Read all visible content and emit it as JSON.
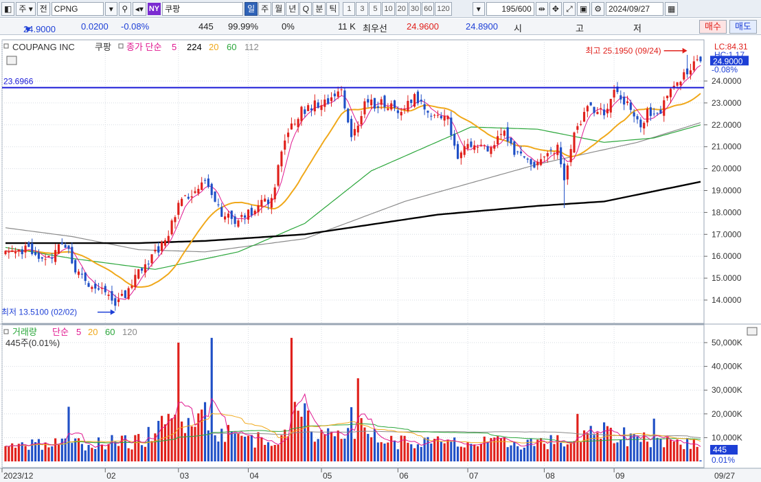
{
  "toolbar": {
    "market_label": "주",
    "prev_label": "전",
    "symbol": "CPNG",
    "ny_badge": "NY",
    "symbol_name": "쿠팡",
    "periods": [
      "일",
      "주",
      "월",
      "년",
      "Q",
      "분",
      "틱"
    ],
    "active_period": "일",
    "intervals": [
      "1",
      "3",
      "5",
      "10",
      "20",
      "30",
      "60",
      "120"
    ],
    "count": "195",
    "count_max": "/600",
    "date": "2024/09/27"
  },
  "quote": {
    "price": "24.9000",
    "direction": "▼",
    "change": "0.0200",
    "change_pct": "-0.08%",
    "volume": "445",
    "vol_pct": "99.99%",
    "pct0": "0%",
    "amount": "11 K",
    "best_label": "최우선",
    "ask": "24.9600",
    "bid": "24.8900",
    "open_label": "시",
    "high_label": "고",
    "low_label": "저",
    "buy_label": "매수",
    "sell_label": "매도"
  },
  "colors": {
    "up": "#e0201b",
    "down": "#1f4fc6",
    "ma5": "#e0168f",
    "ma20": "#f0a81a",
    "ma60": "#2aa63a",
    "ma112": "#8a8a8a",
    "ma224": "#000000",
    "hline": "#1717d6"
  },
  "price_panel": {
    "legend_name": "COUPANG INC",
    "legend_symbol": "쿠팡",
    "legend_type": "종가 단순",
    "ma_periods": [
      "5",
      "224",
      "20",
      "60",
      "112"
    ],
    "top_right_label": "LC:84.31",
    "top_right_label2": "HC:1.17",
    "last_price_tag": "24.9000",
    "last_pct_tag": "-0.08%",
    "hline_label": "23.6966",
    "max_label": "최고 25.1950 (09/24)",
    "min_label": "최저 13.5100 (02/02)"
  },
  "volume_panel": {
    "legend_name": "거래량",
    "legend_type": "단순",
    "ma_periods": [
      "5",
      "20",
      "60",
      "120"
    ],
    "sub_label": "445주(0.01%)",
    "last_tag": "445",
    "last_pct_tag": "0.01%"
  },
  "chart_data": {
    "type": "candlestick",
    "x_tick_labels": [
      "2023/12",
      "02",
      "03",
      "04",
      "05",
      "06",
      "07",
      "08",
      "09"
    ],
    "last_date_label": "09/27",
    "price_axis": {
      "ticks": [
        "14.0000",
        "15.0000",
        "16.0000",
        "17.0000",
        "18.0000",
        "19.0000",
        "20.0000",
        "21.0000",
        "22.0000",
        "23.0000",
        "24.0000"
      ],
      "range": [
        13.0,
        25.7
      ]
    },
    "volume_axis": {
      "ticks": [
        "10,000K",
        "20,000K",
        "30,000K",
        "40,000K",
        "50,000K"
      ],
      "range": [
        0,
        56000
      ]
    },
    "horizontal_line": 23.6966,
    "anchors": [
      {
        "i": 0,
        "p": 16.3
      },
      {
        "i": 8,
        "p": 16.3
      },
      {
        "i": 12,
        "p": 15.8
      },
      {
        "i": 18,
        "p": 16.6
      },
      {
        "i": 22,
        "p": 15.1
      },
      {
        "i": 28,
        "p": 14.5
      },
      {
        "i": 33,
        "p": 13.8
      },
      {
        "i": 36,
        "p": 14.2
      },
      {
        "i": 42,
        "p": 15.7
      },
      {
        "i": 48,
        "p": 16.6
      },
      {
        "i": 53,
        "p": 18.8
      },
      {
        "i": 57,
        "p": 18.9
      },
      {
        "i": 60,
        "p": 19.3
      },
      {
        "i": 65,
        "p": 17.9
      },
      {
        "i": 70,
        "p": 17.6
      },
      {
        "i": 75,
        "p": 18.2
      },
      {
        "i": 80,
        "p": 18.6
      },
      {
        "i": 84,
        "p": 21.5
      },
      {
        "i": 89,
        "p": 22.6
      },
      {
        "i": 93,
        "p": 22.9
      },
      {
        "i": 98,
        "p": 23.1
      },
      {
        "i": 101,
        "p": 23.4
      },
      {
        "i": 104,
        "p": 21.4
      },
      {
        "i": 108,
        "p": 22.9
      },
      {
        "i": 113,
        "p": 23.0
      },
      {
        "i": 118,
        "p": 22.6
      },
      {
        "i": 123,
        "p": 23.2
      },
      {
        "i": 128,
        "p": 22.4
      },
      {
        "i": 133,
        "p": 22.2
      },
      {
        "i": 136,
        "p": 20.5
      },
      {
        "i": 140,
        "p": 21.2
      },
      {
        "i": 145,
        "p": 20.8
      },
      {
        "i": 150,
        "p": 21.6
      },
      {
        "i": 154,
        "p": 20.6
      },
      {
        "i": 158,
        "p": 20.1
      },
      {
        "i": 162,
        "p": 20.6
      },
      {
        "i": 166,
        "p": 20.9
      },
      {
        "i": 168,
        "p": 19.5
      },
      {
        "i": 171,
        "p": 21.6
      },
      {
        "i": 175,
        "p": 22.8
      },
      {
        "i": 180,
        "p": 22.6
      },
      {
        "i": 183,
        "p": 23.4
      },
      {
        "i": 187,
        "p": 22.9
      },
      {
        "i": 191,
        "p": 22.0
      },
      {
        "i": 193,
        "p": 22.6
      },
      {
        "i": 196,
        "p": 22.4
      },
      {
        "i": 200,
        "p": 23.7
      },
      {
        "i": 205,
        "p": 24.5
      },
      {
        "i": 209,
        "p": 24.9
      }
    ],
    "volume_profile": [
      {
        "i": 0,
        "v": 8000
      },
      {
        "i": 20,
        "v": 8000
      },
      {
        "i": 40,
        "v": 9000
      },
      {
        "i": 50,
        "v": 18000
      },
      {
        "i": 58,
        "v": 25000
      },
      {
        "i": 65,
        "v": 13000
      },
      {
        "i": 80,
        "v": 9000
      },
      {
        "i": 88,
        "v": 22000
      },
      {
        "i": 95,
        "v": 12000
      },
      {
        "i": 104,
        "v": 18000
      },
      {
        "i": 115,
        "v": 9000
      },
      {
        "i": 140,
        "v": 8000
      },
      {
        "i": 170,
        "v": 9000
      },
      {
        "i": 178,
        "v": 13000
      },
      {
        "i": 200,
        "v": 9000
      },
      {
        "i": 209,
        "v": 7500
      }
    ],
    "volume_spikes": [
      {
        "i": 19,
        "v": 23000
      },
      {
        "i": 52,
        "v": 50000
      },
      {
        "i": 62,
        "v": 52000
      },
      {
        "i": 86,
        "v": 52000
      },
      {
        "i": 106,
        "v": 35000
      },
      {
        "i": 172,
        "v": 20000
      },
      {
        "i": 195,
        "v": 18000
      }
    ],
    "ma224_series": [
      [
        0,
        16.6
      ],
      [
        40,
        16.6
      ],
      [
        60,
        16.7
      ],
      [
        90,
        17.0
      ],
      [
        130,
        17.9
      ],
      [
        160,
        18.3
      ],
      [
        180,
        18.5
      ],
      [
        209,
        19.4
      ]
    ],
    "ma112_series": [
      [
        0,
        17.3
      ],
      [
        20,
        16.9
      ],
      [
        40,
        16.3
      ],
      [
        60,
        16.2
      ],
      [
        90,
        16.8
      ],
      [
        120,
        18.5
      ],
      [
        160,
        20.2
      ],
      [
        190,
        21.2
      ],
      [
        209,
        22.1
      ]
    ],
    "ma60_series": [
      [
        0,
        16.4
      ],
      [
        20,
        15.9
      ],
      [
        45,
        15.4
      ],
      [
        70,
        16.2
      ],
      [
        90,
        17.5
      ],
      [
        110,
        19.9
      ],
      [
        140,
        21.9
      ],
      [
        160,
        21.8
      ],
      [
        180,
        21.2
      ],
      [
        195,
        21.4
      ],
      [
        209,
        22.0
      ]
    ]
  }
}
